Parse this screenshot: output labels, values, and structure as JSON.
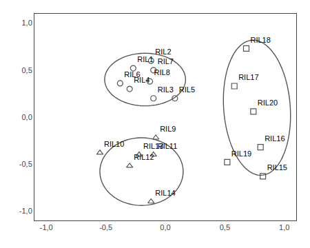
{
  "chart_data": {
    "type": "scatter",
    "color": "#555555",
    "grid": false,
    "series": [
      {
        "marker": "circle",
        "x": [
          -0.27,
          -0.12,
          -0.1,
          -0.38,
          -0.3,
          -0.13,
          -0.1,
          0.08
        ],
        "y": [
          0.52,
          0.6,
          0.5,
          0.36,
          0.3,
          0.38,
          0.2,
          0.2
        ],
        "labels": [
          "RIL1",
          "RIL2",
          "RIL7",
          "RIL6",
          "RIL4",
          "RIL8",
          "RIL3",
          "RIL5"
        ]
      },
      {
        "marker": "triangle",
        "x": [
          -0.08,
          -0.55,
          -0.22,
          -0.1,
          -0.3,
          -0.12
        ],
        "y": [
          -0.22,
          -0.38,
          -0.4,
          -0.4,
          -0.52,
          -0.9
        ],
        "labels": [
          "RIL9",
          "RIL10",
          "RIL13",
          "RIL11",
          "RIL12",
          "RIL14"
        ]
      },
      {
        "marker": "square",
        "x": [
          0.68,
          0.58,
          0.74,
          0.8,
          0.52,
          0.82
        ],
        "y": [
          0.73,
          0.33,
          0.06,
          -0.32,
          -0.48,
          -0.63
        ],
        "labels": [
          "RIL18",
          "RIL17",
          "RIL20",
          "RIL16",
          "RIL19",
          "RIL15"
        ]
      }
    ],
    "ellipses": [
      {
        "center_x": -0.17,
        "center_y": 0.4,
        "width": 0.68,
        "height": 0.56,
        "angle": 0
      },
      {
        "center_x": -0.2,
        "center_y": -0.58,
        "width": 0.7,
        "height": 0.72,
        "angle": 0
      },
      {
        "center_x": 0.77,
        "center_y": 0.1,
        "width": 0.56,
        "height": 1.44,
        "angle": 3
      }
    ],
    "xlim": [
      -1.1,
      1.1
    ],
    "ylim": [
      -1.1,
      1.1
    ],
    "xticks": [
      {
        "value": -1.0,
        "label": "-1,0"
      },
      {
        "value": -0.5,
        "label": "-0,5"
      },
      {
        "value": 0.0,
        "label": "0,0"
      },
      {
        "value": 0.5,
        "label": "0,5"
      },
      {
        "value": 1.0,
        "label": "1,0"
      }
    ],
    "yticks": [
      {
        "value": -1.0,
        "label": "-1,0"
      },
      {
        "value": -0.5,
        "label": "-0,5"
      },
      {
        "value": 0.0,
        "label": "0,0"
      },
      {
        "value": 0.5,
        "label": "0,5"
      },
      {
        "value": 1.0,
        "label": "1,0"
      }
    ]
  }
}
